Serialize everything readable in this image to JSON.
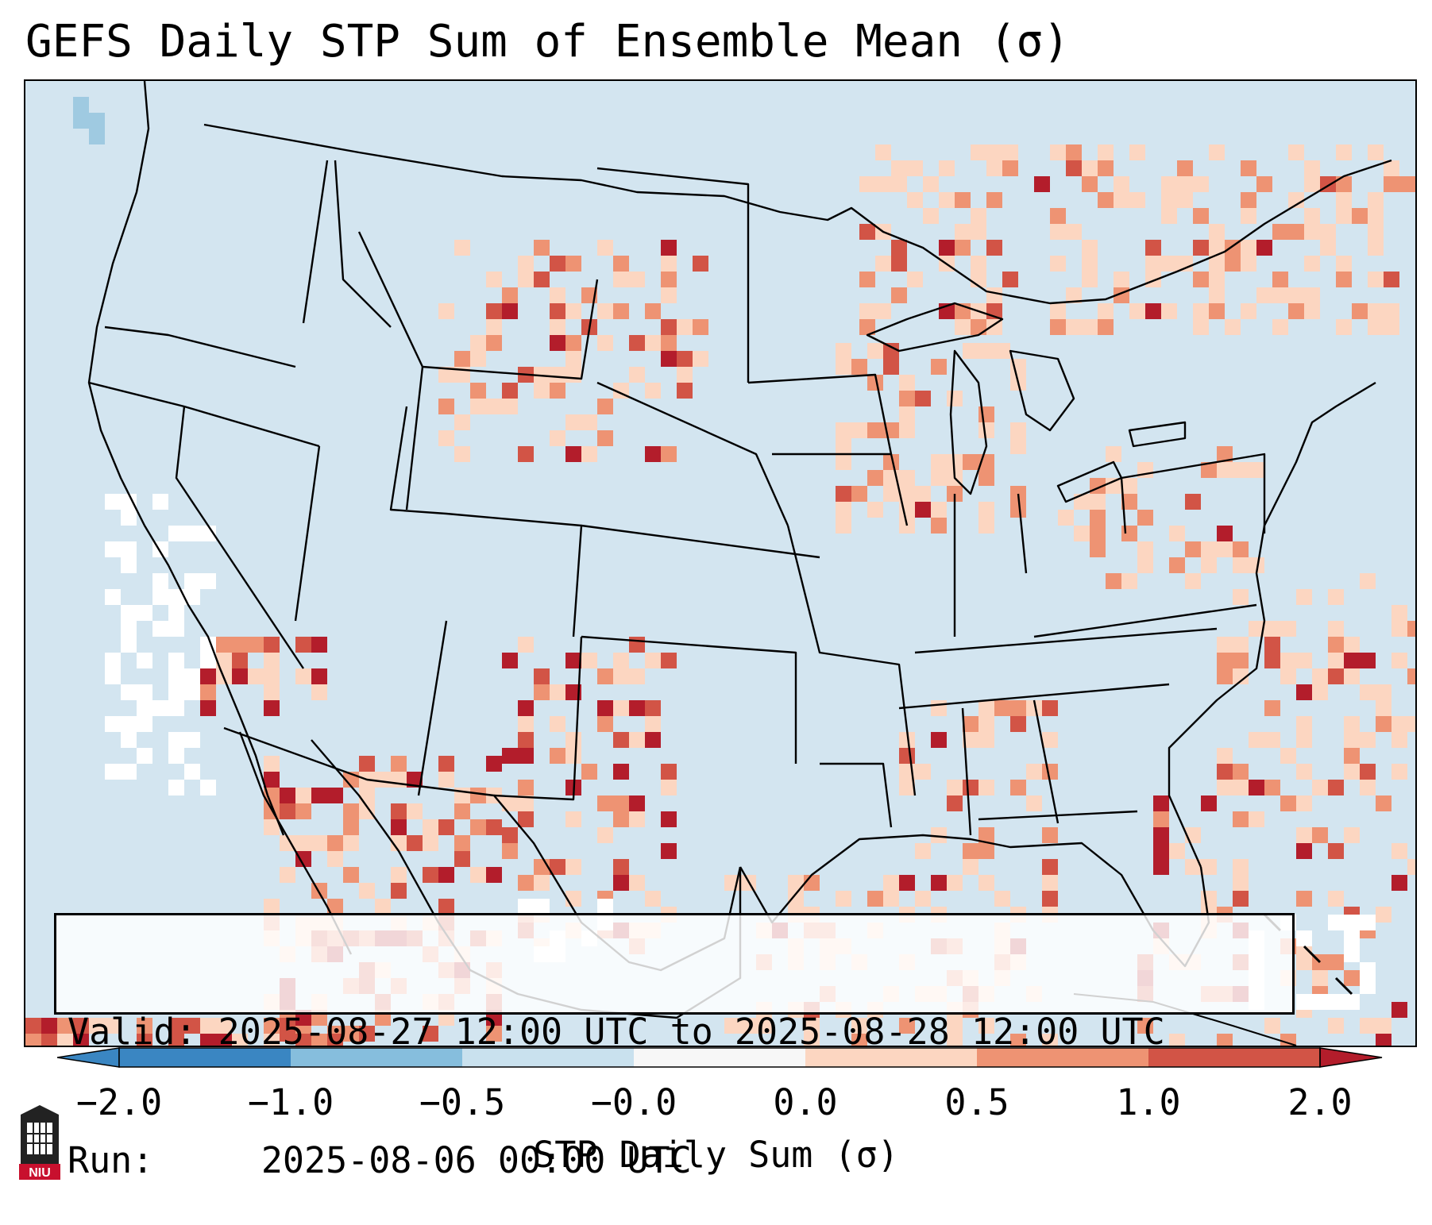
{
  "title": "GEFS Daily STP Sum of Ensemble Mean (σ)",
  "info": {
    "valid_label": "Valid:",
    "valid_text": "2025-08-27 12:00 UTC to 2025-08-28 12:00 UTC",
    "run_label": "Run:  ",
    "run_text": "2025-08-06 00:00 UTC"
  },
  "colorbar": {
    "label": "STP Daily Sum (σ)",
    "ticks": [
      "−2.0",
      "−1.0",
      "−0.5",
      "−0.0",
      "0.0",
      "0.5",
      "1.0",
      "2.0"
    ],
    "colors": [
      "#3a86c2",
      "#86bedd",
      "#c9e1ee",
      "#f7f7f7",
      "#fcd6c1",
      "#ee9373",
      "#d25446",
      "#b31d2b"
    ]
  },
  "logo": {
    "text": "NIU",
    "name": "Northern Illinois University"
  },
  "palette": {
    "background": "#d3e5f0",
    "white": "#ffffff",
    "light_red": "#fcd6c1",
    "mid_red": "#ee9373",
    "red": "#d25446",
    "dark_red": "#b31d2b",
    "light_blue": "#9fcae1"
  }
}
